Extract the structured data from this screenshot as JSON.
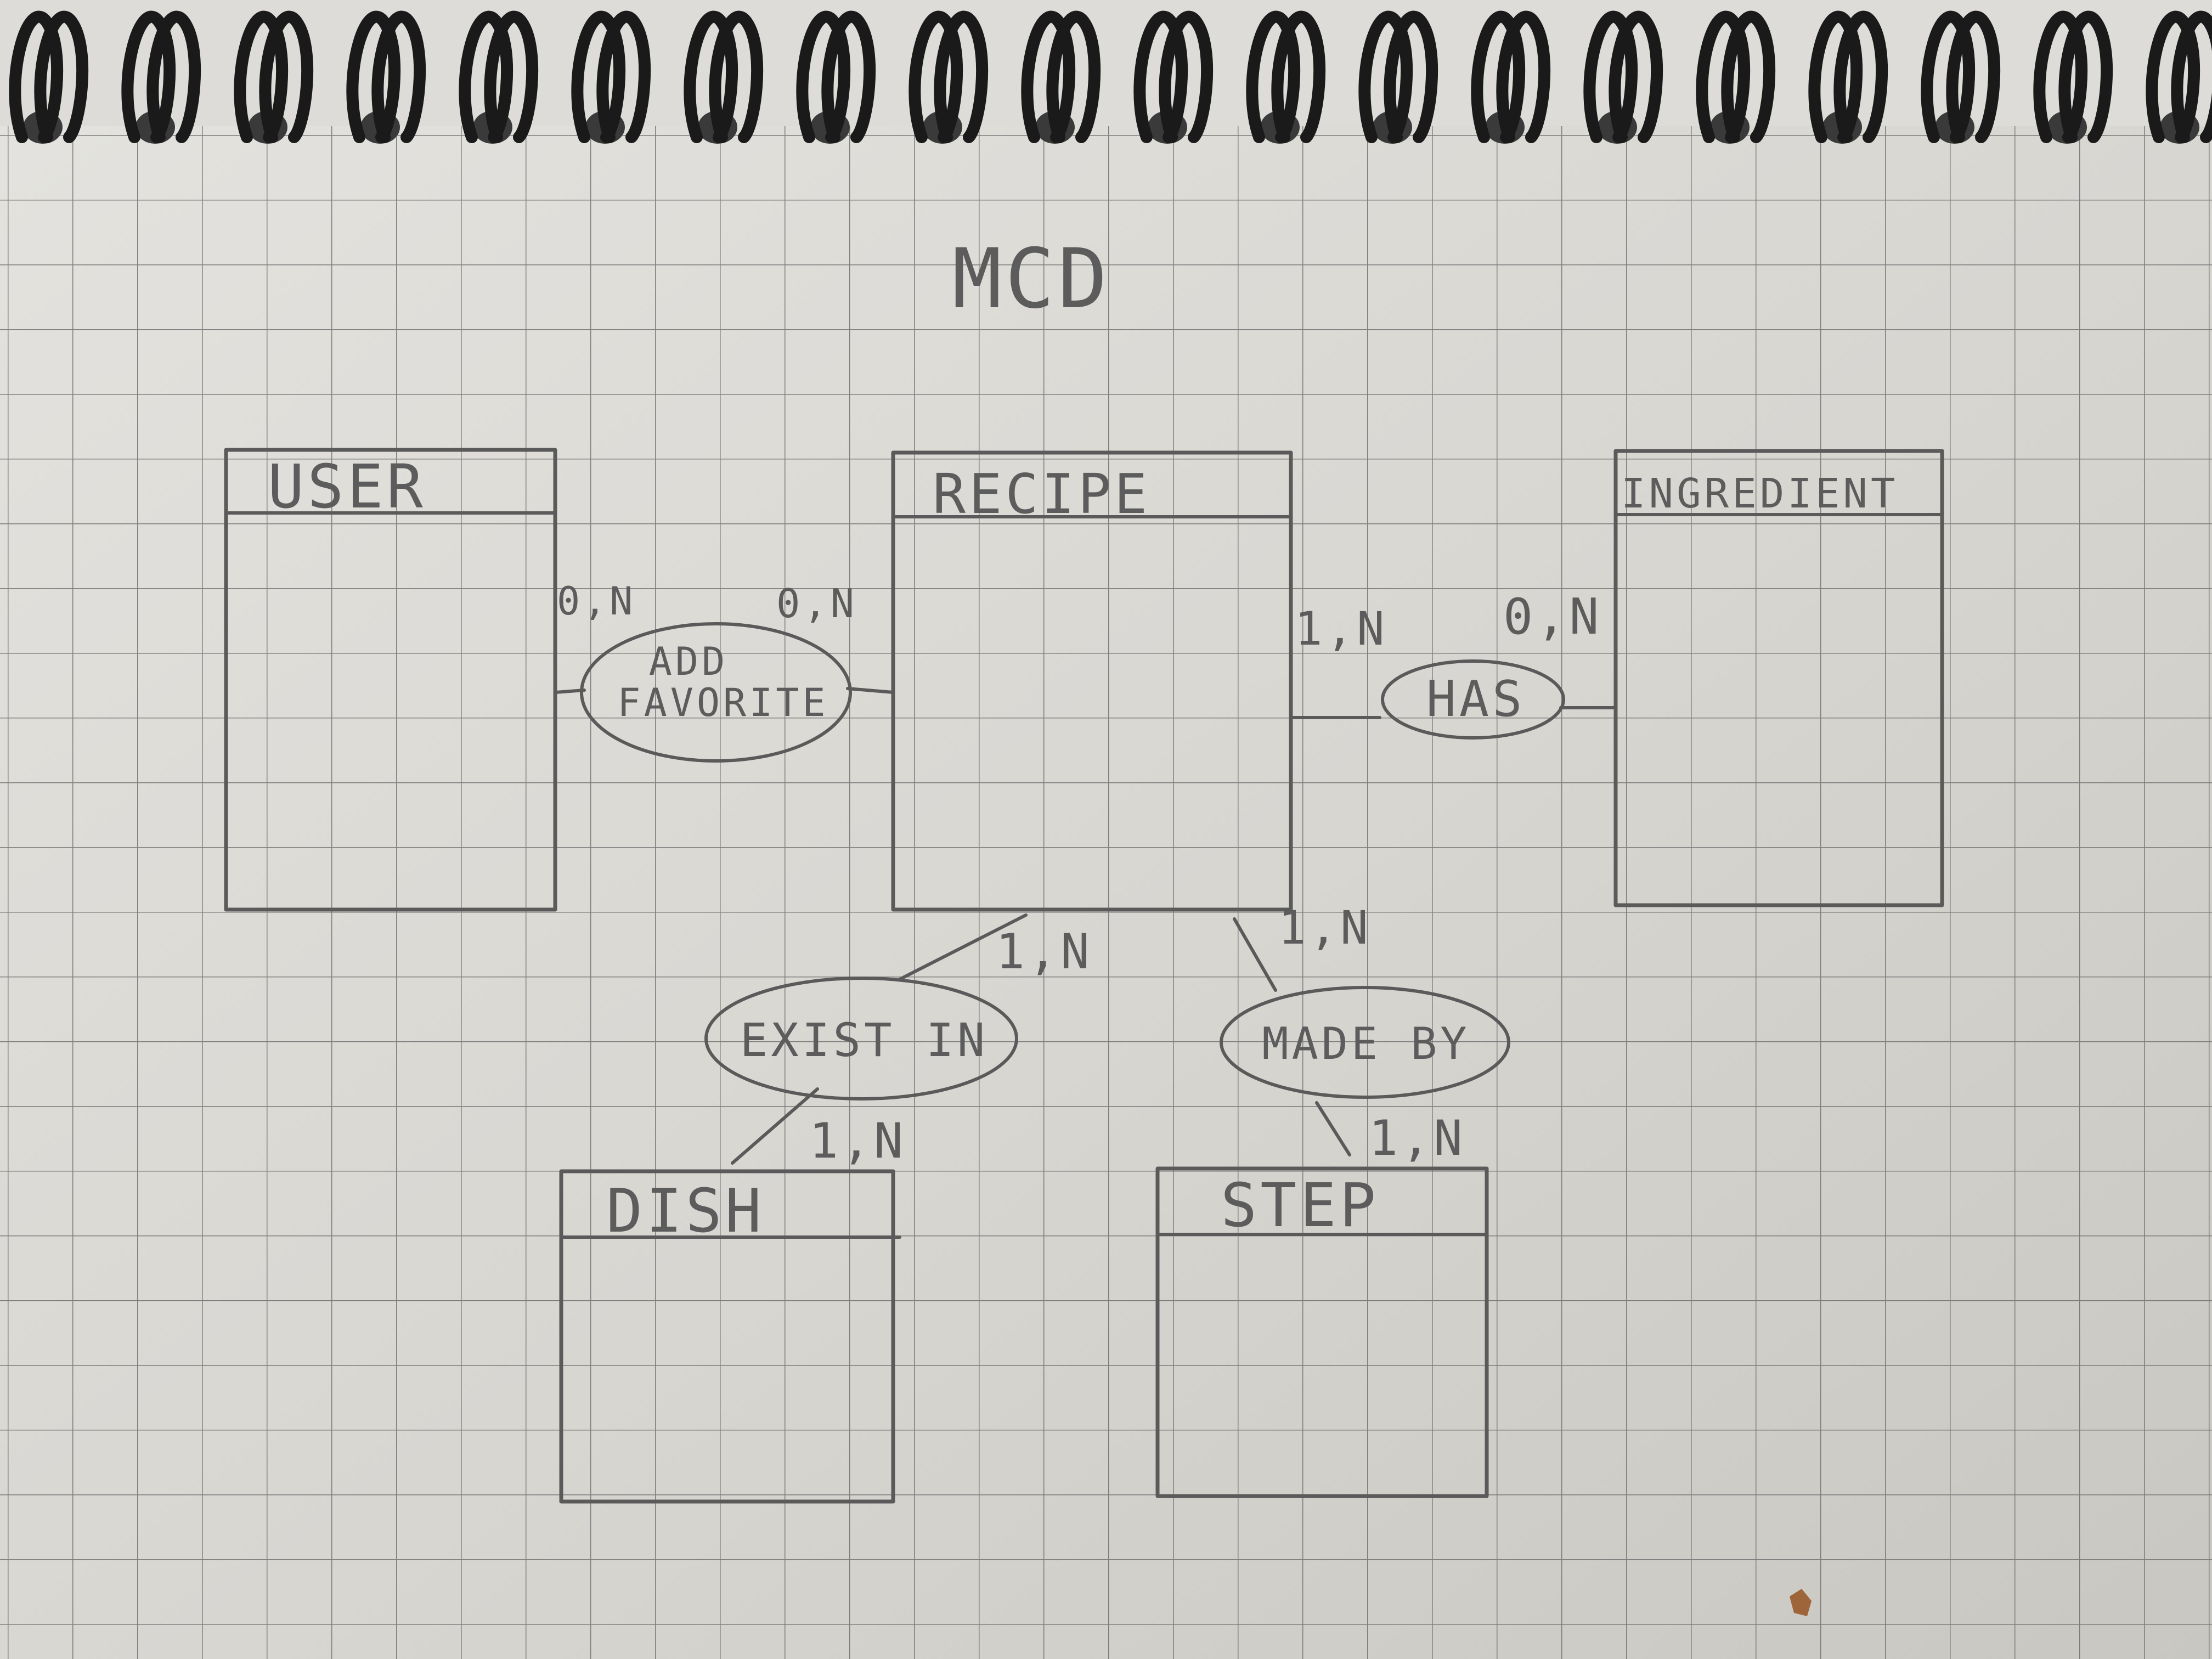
{
  "title": "MCD",
  "entities": {
    "user": "USER",
    "recipe": "RECIPE",
    "ingredient": "INGREDIENT",
    "dish": "DISH",
    "step": "STEP"
  },
  "associations": {
    "add_favorite_line1": "ADD",
    "add_favorite_line2": "FAVORITE",
    "has": "HAS",
    "exist_in": "EXIST IN",
    "made_by": "MADE BY"
  },
  "cardinalities": {
    "user_add_favorite": "0,N",
    "recipe_add_favorite": "0,N",
    "recipe_has": "1,N",
    "ingredient_has": "0,N",
    "recipe_exist_in": "1,N",
    "dish_exist_in": "1,N",
    "recipe_made_by": "1,N",
    "step_made_by": "1,N"
  },
  "colors": {
    "paper": "#d9d7d2",
    "grid": "#6e6e6e",
    "pencil": "#5a5a5a",
    "binding": "#1a1a1a"
  }
}
